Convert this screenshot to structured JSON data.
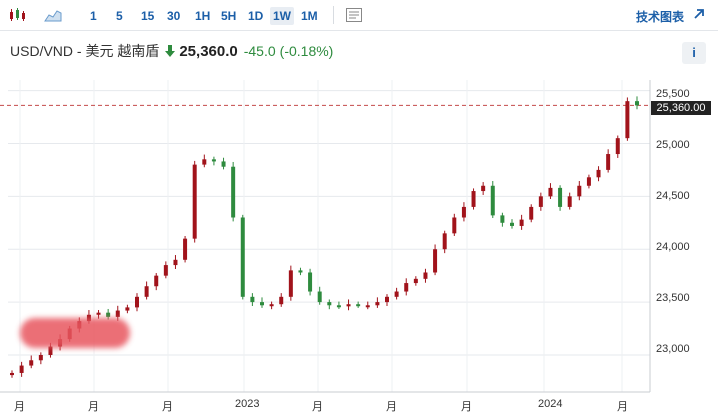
{
  "toolbar": {
    "timeframes": [
      "1",
      "5",
      "15",
      "30",
      "1H",
      "5H",
      "1D",
      "1W",
      "1M"
    ],
    "active_timeframe": "1W",
    "tech_chart_label": "技术图表"
  },
  "header": {
    "symbol": "USD/VND - 美元 越南盾",
    "price": "25,360.0",
    "change": "-45.0",
    "change_pct": "(-0.18%)",
    "info_label": "i"
  },
  "colors": {
    "up": "#2e8b3e",
    "down": "#a1131b",
    "accent": "#1c5fa8"
  },
  "chart_data": {
    "type": "candlestick",
    "ylim": [
      22650,
      25600
    ],
    "y_ticks": [
      "25,500",
      "25,000",
      "24,500",
      "24,000",
      "23,500",
      "23,000"
    ],
    "x_ticks": [
      "月",
      "月",
      "月",
      "月",
      "2023",
      "月",
      "月",
      "月",
      "月",
      "2024",
      "月"
    ],
    "current_price_label": "25,360.00",
    "current_price": 25360,
    "close_path": [
      22830,
      22900,
      22950,
      23000,
      23080,
      23150,
      23250,
      23320,
      23380,
      23400,
      23360,
      23420,
      23450,
      23550,
      23650,
      23750,
      23850,
      23900,
      24100,
      24800,
      24850,
      24830,
      24780,
      24300,
      23550,
      23500,
      23470,
      23480,
      23550,
      23800,
      23780,
      23600,
      23500,
      23470,
      23460,
      23480,
      23470,
      23470,
      23500,
      23550,
      23600,
      23680,
      23720,
      23780,
      24000,
      24150,
      24300,
      24400,
      24550,
      24600,
      24320,
      24250,
      24220,
      24280,
      24400,
      24500,
      24580,
      24400,
      24500,
      24600,
      24680,
      24750,
      24900,
      25050,
      25400,
      25360
    ]
  }
}
